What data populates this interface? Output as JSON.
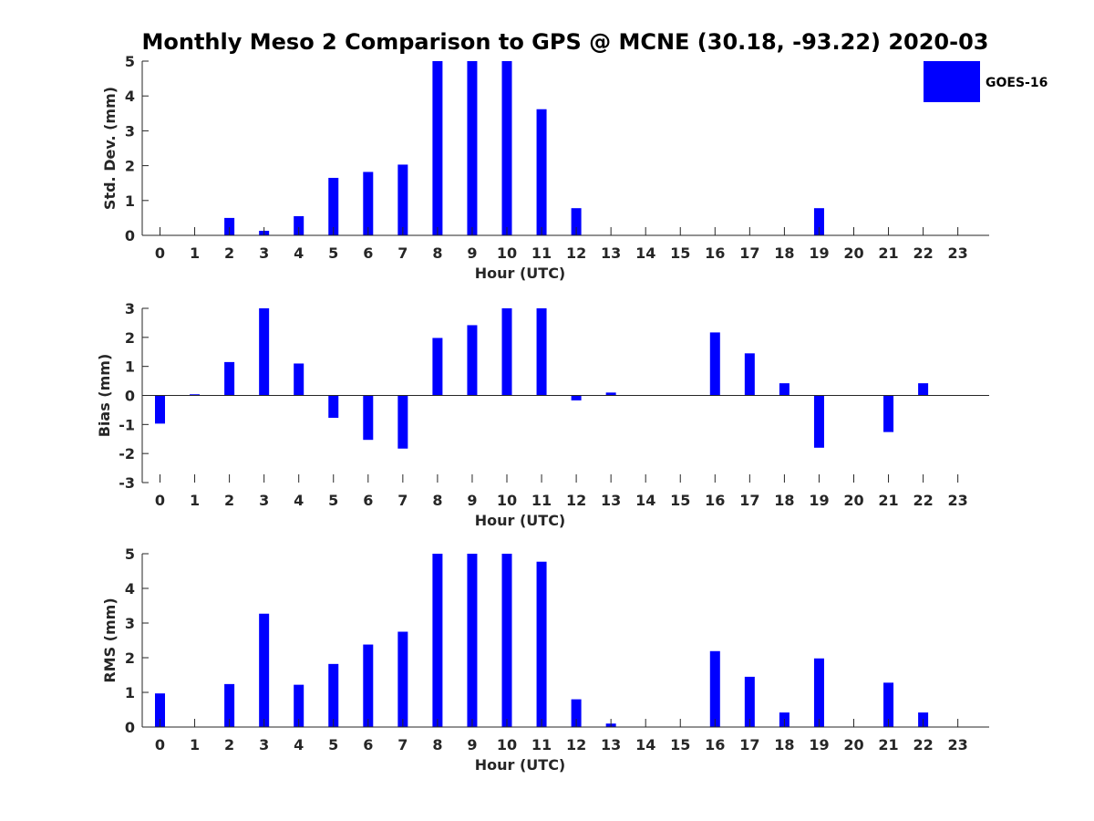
{
  "title": "Monthly Meso 2 Comparison to GPS @ MCNE (30.18, -93.22) 2020-03",
  "legend": {
    "label": "GOES-16",
    "color": "#0000ff"
  },
  "colors": {
    "bar": "#0000ff",
    "axis": "#262626"
  },
  "chart_data": [
    {
      "type": "bar",
      "name": "std-dev",
      "categories": [
        "0",
        "1",
        "2",
        "3",
        "4",
        "5",
        "6",
        "7",
        "8",
        "9",
        "10",
        "11",
        "12",
        "13",
        "14",
        "15",
        "16",
        "17",
        "18",
        "19",
        "20",
        "21",
        "22",
        "23"
      ],
      "values": [
        0,
        0,
        0.5,
        0.13,
        0.55,
        1.65,
        1.82,
        2.03,
        5,
        5,
        5,
        3.62,
        0.78,
        0,
        0,
        0,
        0,
        0,
        0,
        0.78,
        0,
        0,
        0,
        0
      ],
      "xlabel": "Hour (UTC)",
      "ylabel": "Std. Dev. (mm)",
      "ylim": [
        0,
        5
      ],
      "yticks": [
        "0",
        "1",
        "2",
        "3",
        "4",
        "5"
      ],
      "series_name": "GOES-16"
    },
    {
      "type": "bar",
      "name": "bias",
      "categories": [
        "0",
        "1",
        "2",
        "3",
        "4",
        "5",
        "6",
        "7",
        "8",
        "9",
        "10",
        "11",
        "12",
        "13",
        "14",
        "15",
        "16",
        "17",
        "18",
        "19",
        "20",
        "21",
        "22",
        "23"
      ],
      "values": [
        -0.97,
        0.04,
        1.15,
        3,
        1.1,
        -0.77,
        -1.53,
        -1.83,
        1.98,
        2.42,
        3,
        3,
        -0.17,
        0.1,
        0,
        0,
        2.17,
        1.45,
        0.42,
        -1.8,
        0,
        -1.26,
        0.42,
        0
      ],
      "xlabel": "Hour (UTC)",
      "ylabel": "Bias (mm)",
      "ylim": [
        -3,
        3
      ],
      "yticks": [
        "-3",
        "-2",
        "-1",
        "0",
        "1",
        "2",
        "3"
      ],
      "series_name": "GOES-16"
    },
    {
      "type": "bar",
      "name": "rms",
      "categories": [
        "0",
        "1",
        "2",
        "3",
        "4",
        "5",
        "6",
        "7",
        "8",
        "9",
        "10",
        "11",
        "12",
        "13",
        "14",
        "15",
        "16",
        "17",
        "18",
        "19",
        "20",
        "21",
        "22",
        "23"
      ],
      "values": [
        0.97,
        0,
        1.24,
        3.27,
        1.22,
        1.82,
        2.38,
        2.75,
        5,
        5,
        5,
        4.77,
        0.8,
        0.1,
        0,
        0,
        2.19,
        1.45,
        0.42,
        1.98,
        0,
        1.28,
        0.42,
        0
      ],
      "xlabel": "Hour (UTC)",
      "ylabel": "RMS (mm)",
      "ylim": [
        0,
        5
      ],
      "yticks": [
        "0",
        "1",
        "2",
        "3",
        "4",
        "5"
      ],
      "series_name": "GOES-16"
    }
  ]
}
